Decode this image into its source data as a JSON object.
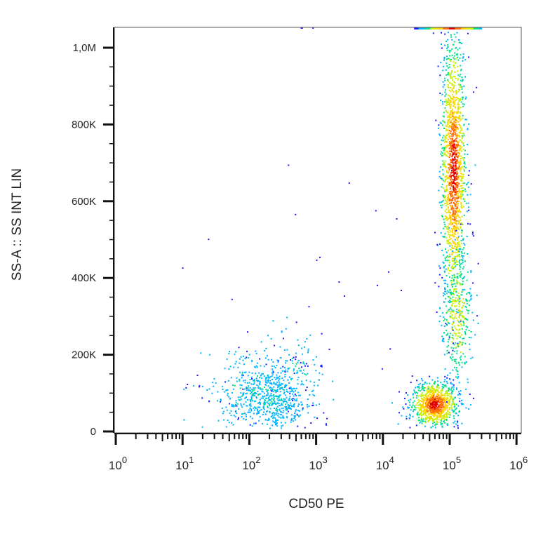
{
  "chart_data": {
    "type": "scatter",
    "xlabel": "CD50 PE",
    "ylabel": "SS-A :: SS INT LIN",
    "x_scale": "log",
    "xlim": [
      1,
      1000000
    ],
    "ylim": [
      0,
      1050000
    ],
    "x_ticks": [
      {
        "base": "10",
        "exp": "0",
        "value": 1
      },
      {
        "base": "10",
        "exp": "1",
        "value": 10
      },
      {
        "base": "10",
        "exp": "2",
        "value": 100
      },
      {
        "base": "10",
        "exp": "3",
        "value": 1000
      },
      {
        "base": "10",
        "exp": "4",
        "value": 10000
      },
      {
        "base": "10",
        "exp": "5",
        "value": 100000
      },
      {
        "base": "10",
        "exp": "6",
        "value": 1000000
      }
    ],
    "y_ticks": [
      {
        "label": "0",
        "value": 0
      },
      {
        "label": "200K",
        "value": 200000
      },
      {
        "label": "400K",
        "value": 400000
      },
      {
        "label": "600K",
        "value": 600000
      },
      {
        "label": "800K",
        "value": 800000
      },
      {
        "label": "1,0M",
        "value": 1000000
      }
    ],
    "grid": false,
    "legend": "none",
    "colormap": [
      "#1a1aff",
      "#00b4ff",
      "#00e08a",
      "#c8f000",
      "#ffd400",
      "#ff6a00",
      "#e00000"
    ],
    "populations": [
      {
        "x_center": 60000,
        "y_center": 70000,
        "x_spread_decades": 0.17,
        "y_spread": 28000,
        "count": 950,
        "density": "high"
      },
      {
        "x_center": 115000,
        "y_center": 680000,
        "x_spread_decades": 0.09,
        "y_spread": 170000,
        "count": 1500,
        "density": "high"
      },
      {
        "x_center": 130000,
        "y_center": 300000,
        "x_spread_decades": 0.12,
        "y_spread": 90000,
        "count": 380,
        "density": "medium"
      },
      {
        "x_center": 240,
        "y_center": 80000,
        "x_spread_decades": 0.28,
        "y_spread": 45000,
        "count": 520,
        "density": "low"
      },
      {
        "x_center": 100,
        "y_center": 110000,
        "x_spread_decades": 0.35,
        "y_spread": 60000,
        "count": 260,
        "density": "low"
      },
      {
        "x_center": 500,
        "y_center": 170000,
        "x_spread_decades": 0.2,
        "y_spread": 60000,
        "count": 90,
        "density": "low"
      }
    ],
    "saturated_top_row": {
      "x_range": [
        30000,
        300000
      ],
      "y": 1050000
    }
  }
}
